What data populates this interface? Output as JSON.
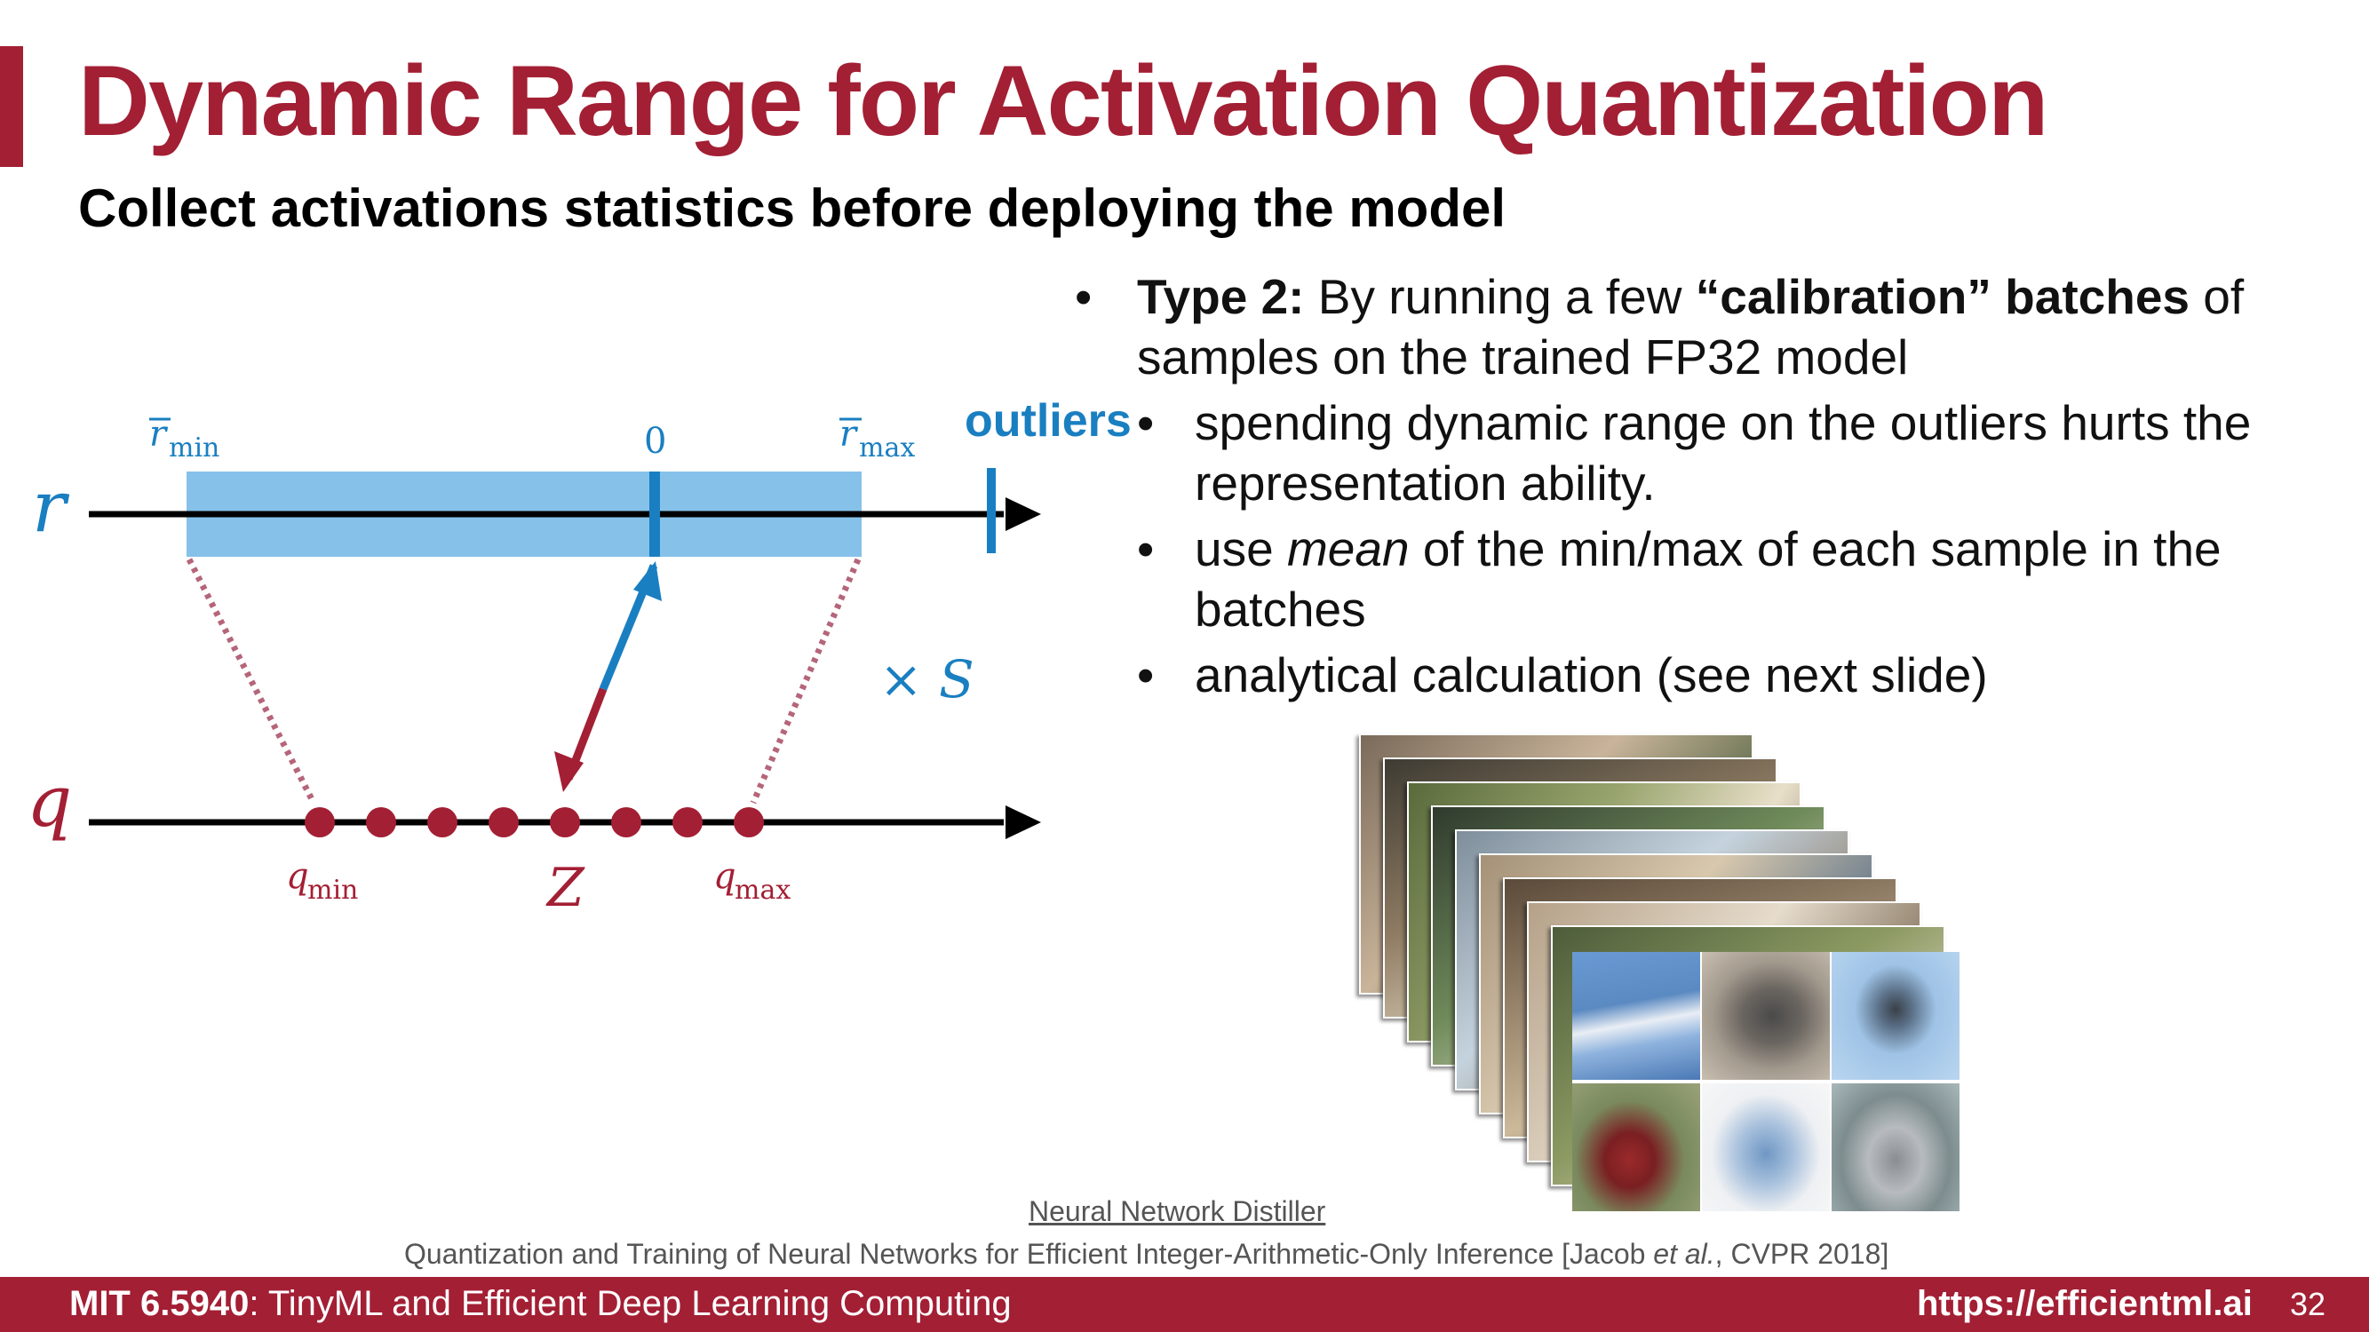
{
  "title": "Dynamic Range for Activation Quantization",
  "subtitle": "Collect activations statistics before deploying the model",
  "bullet": {
    "bold_prefix": "Type 2:",
    "text_1": " By running a few ",
    "bold_mid": "“calibration” batches",
    "text_2": " of samples on the trained FP32 model"
  },
  "sub_bullets": [
    "spending dynamic range on the outliers hurts the representation ability.",
    {
      "pre": "use ",
      "italic": "mean",
      "post": " of the min/max of each sample in the batches"
    },
    "analytical calculation (see next slide)"
  ],
  "outliers_label": "outliers",
  "diagram": {
    "r_axis_label": "r",
    "q_axis_label": "q",
    "r_min_label": "r",
    "r_min_sub": "min",
    "r_zero_label": "0",
    "r_max_label": "r",
    "r_max_sub": "max",
    "q_min_label": "q",
    "q_min_sub": "min",
    "z_label": "Z",
    "q_max_label": "q",
    "q_max_sub": "max",
    "scale_label": "× S",
    "colors": {
      "range_fill": "#86c1ea",
      "blue": "#1a7fc1",
      "red": "#a31f34",
      "dotted": "#b5657a"
    }
  },
  "images_caption": "Neural Network Distiller",
  "citation": {
    "text": "Quantization and Training of Neural Networks for Efficient Integer-Arithmetic-Only Inference  [Jacob ",
    "italic": "et al.",
    "tail": ", CVPR 2018]"
  },
  "footer": {
    "course_code": "MIT 6.5940",
    "course_name": ": TinyML and Efficient Deep Learning Computing",
    "url": "https://efficientml.ai",
    "page_number": "32"
  }
}
